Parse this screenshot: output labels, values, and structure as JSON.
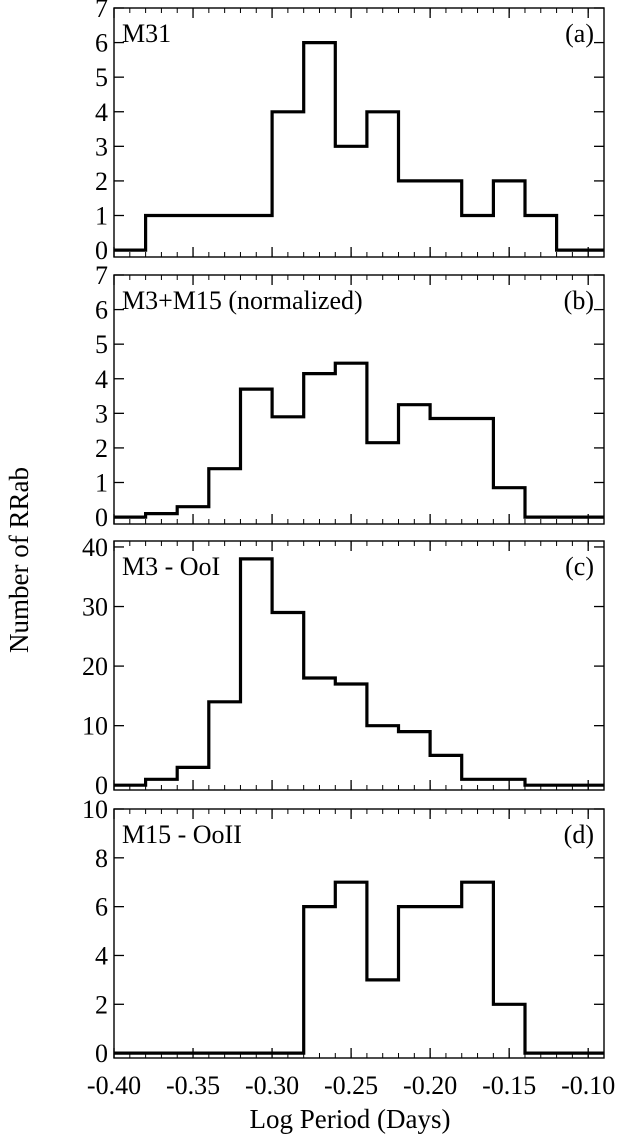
{
  "chart_data": {
    "type": "histogram",
    "shared_x": {
      "label": "Log Period (Days)",
      "range": [
        -0.4,
        -0.09
      ],
      "ticks": [
        -0.4,
        -0.35,
        -0.3,
        -0.25,
        -0.2,
        -0.15,
        -0.1
      ],
      "tick_labels": [
        "-0.40",
        "-0.35",
        "-0.30",
        "-0.25",
        "-0.20",
        "-0.15",
        "-0.10"
      ],
      "minor_step": 0.01
    },
    "shared_ylabel": "Number of RRab",
    "bin_edges": [
      -0.38,
      -0.36,
      -0.34,
      -0.32,
      -0.3,
      -0.28,
      -0.26,
      -0.24,
      -0.22,
      -0.2,
      -0.18,
      -0.16,
      -0.14,
      -0.12,
      -0.1
    ],
    "panels": [
      {
        "title": "M31",
        "tag": "(a)",
        "ylim": [
          -0.2,
          7
        ],
        "yticks": [
          0,
          1,
          2,
          3,
          4,
          5,
          6,
          7
        ],
        "ytick_labels": [
          "0",
          "1",
          "2",
          "3",
          "4",
          "5",
          "6",
          "7"
        ],
        "values": [
          0,
          1,
          1,
          1,
          1,
          4,
          6,
          3,
          4,
          2,
          2,
          1,
          2,
          1,
          0
        ],
        "x_start": -0.4,
        "x_end": -0.09
      },
      {
        "title": "M3+M15 (normalized)",
        "tag": "(b)",
        "ylim": [
          -0.2,
          7
        ],
        "yticks": [
          0,
          1,
          2,
          3,
          4,
          5,
          6,
          7
        ],
        "ytick_labels": [
          "0",
          "1",
          "2",
          "3",
          "4",
          "5",
          "6",
          "7"
        ],
        "values": [
          0,
          0.1,
          0.3,
          1.4,
          3.7,
          2.9,
          4.15,
          4.45,
          2.15,
          3.25,
          2.85,
          2.85,
          0.85,
          0,
          0
        ],
        "x_start": -0.4,
        "x_end": -0.09
      },
      {
        "title": "M3 - OoI",
        "tag": "(c)",
        "ylim": [
          -0.8,
          41
        ],
        "yticks": [
          0,
          10,
          20,
          30,
          40
        ],
        "ytick_labels": [
          "0",
          "10",
          "20",
          "30",
          "40"
        ],
        "values": [
          0,
          1,
          3,
          14,
          38,
          29,
          18,
          17,
          10,
          9,
          5,
          1,
          1,
          0,
          0
        ],
        "x_start": -0.4,
        "x_end": -0.09
      },
      {
        "title": "M15 - OoII",
        "tag": "(d)",
        "ylim": [
          -0.2,
          10
        ],
        "yticks": [
          0,
          2,
          4,
          6,
          8,
          10
        ],
        "ytick_labels": [
          "0",
          "2",
          "4",
          "6",
          "8",
          "10"
        ],
        "values": [
          0,
          0,
          0,
          0,
          0,
          0,
          6,
          7,
          3,
          6,
          6,
          7,
          2,
          0,
          0
        ],
        "x_start": -0.4,
        "x_end": -0.09
      }
    ]
  }
}
